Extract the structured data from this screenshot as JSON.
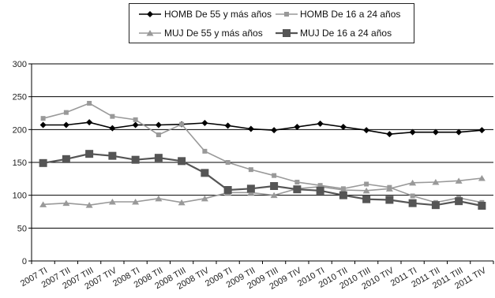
{
  "chart_data": {
    "type": "line",
    "title": "",
    "xlabel": "",
    "ylabel": "",
    "ylim": [
      0,
      300
    ],
    "yticks": [
      "0",
      "50",
      "100",
      "150",
      "200",
      "250",
      "300"
    ],
    "grid": "horizontal",
    "legend_position": "top",
    "categories": [
      "2007 TI",
      "2007 TII",
      "2007 TIII",
      "2007 TIV",
      "2008 TI",
      "2008 TII",
      "2008 TIII",
      "2008 TIV",
      "2009 TI",
      "2009 TII",
      "2009 TIII",
      "2009 TIV",
      "2010 TI",
      "2010 TII",
      "2010 TIII",
      "2010 TIV",
      "2011 TI",
      "2011 TII",
      "2011 TIII",
      "2011 TIV"
    ],
    "series": [
      {
        "name": "HOMB De 55 y más años",
        "color": "#000000",
        "marker": "diamond",
        "values": [
          207,
          207,
          211,
          202,
          207,
          207,
          208,
          210,
          206,
          201,
          199,
          204,
          209,
          204,
          199,
          193,
          196,
          196,
          196,
          199
        ]
      },
      {
        "name": "HOMB De 16 a 24 años",
        "color": "#999999",
        "marker": "small-square",
        "values": [
          217,
          226,
          240,
          220,
          215,
          192,
          208,
          167,
          150,
          139,
          130,
          120,
          115,
          110,
          117,
          112,
          99,
          89,
          96,
          89
        ]
      },
      {
        "name": "MUJ De 55 y más años",
        "color": "#999999",
        "marker": "triangle",
        "values": [
          86,
          88,
          85,
          90,
          90,
          95,
          89,
          95,
          104,
          104,
          100,
          110,
          113,
          108,
          107,
          110,
          119,
          120,
          122,
          126
        ]
      },
      {
        "name": "MUJ De 16 a 24 años",
        "color": "#555555",
        "marker": "big-square",
        "values": [
          149,
          155,
          163,
          160,
          154,
          157,
          152,
          134,
          108,
          110,
          114,
          109,
          107,
          100,
          94,
          93,
          88,
          85,
          91,
          84
        ]
      }
    ]
  }
}
